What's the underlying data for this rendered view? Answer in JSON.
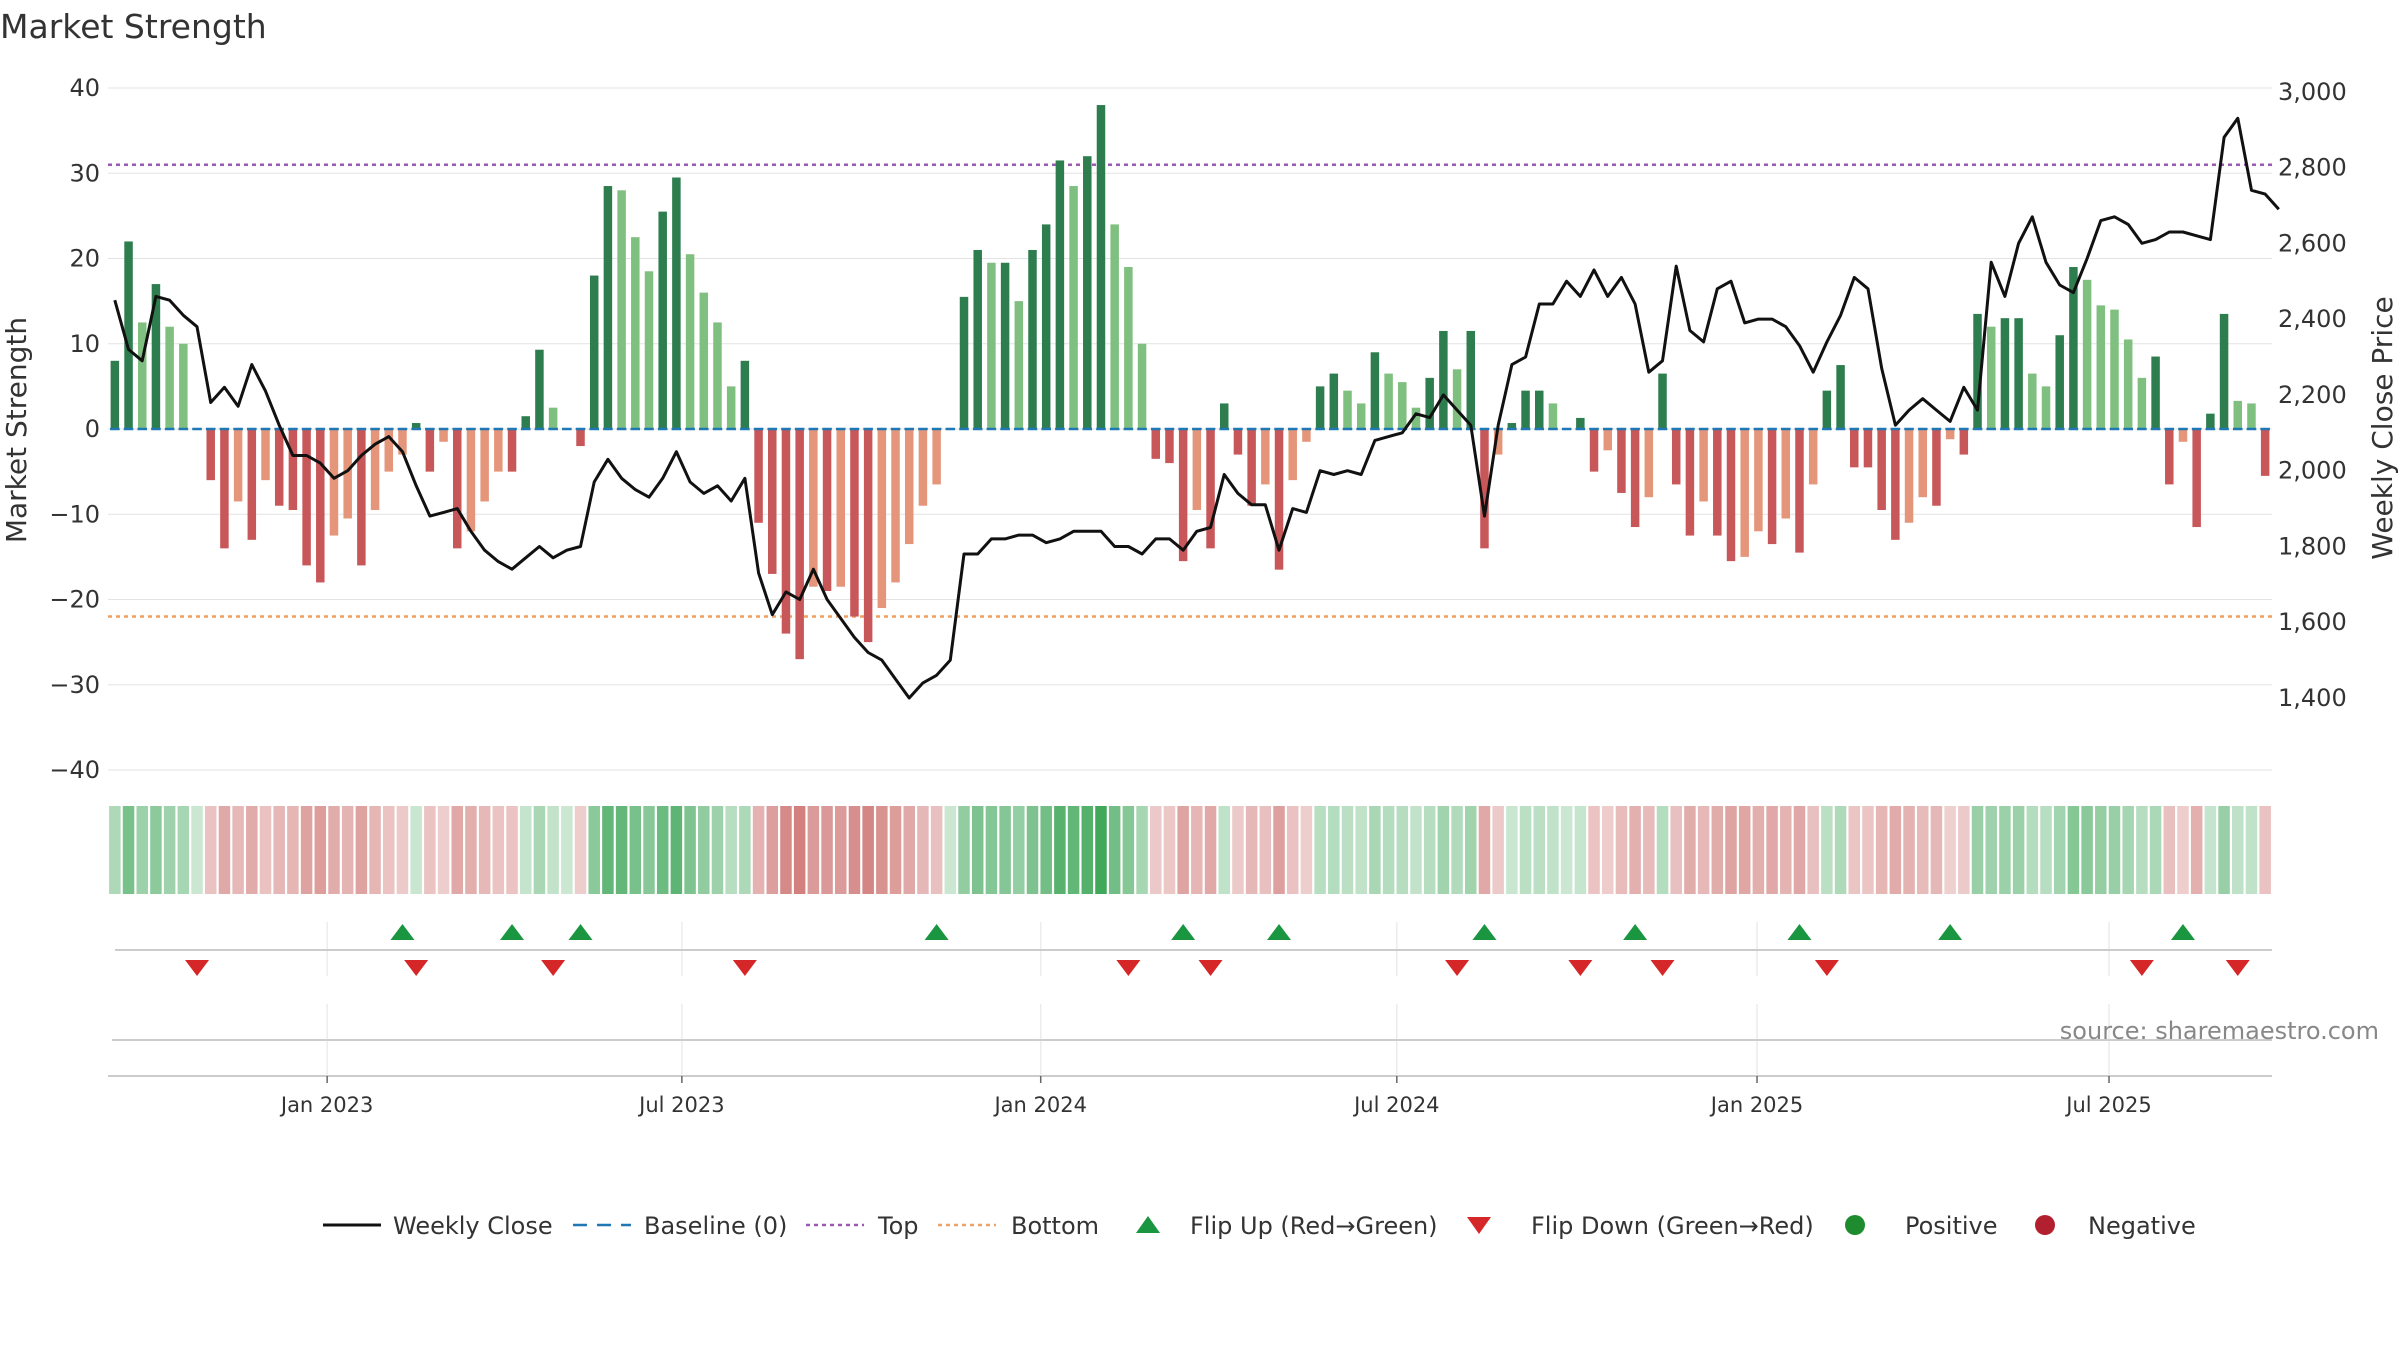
{
  "chart_data": {
    "type": "bar",
    "title": "Market Strength",
    "ylabel": "Market Strength",
    "y2label": "Weekly Close Price",
    "ylim": [
      -40,
      40
    ],
    "y2lim": [
      1210,
      3010
    ],
    "yticks": [
      40,
      30,
      20,
      10,
      0,
      -10,
      -20,
      -30,
      -40
    ],
    "yticklabels": [
      "40",
      "30",
      "20",
      "10",
      "0",
      "−10",
      "−20",
      "−30",
      "−40"
    ],
    "y2ticks": [
      3000,
      2800,
      2600,
      2400,
      2200,
      2000,
      1800,
      1600,
      1400
    ],
    "y2ticklabels": [
      "3,000",
      "2,800",
      "2,600",
      "2,400",
      "2,200",
      "2,000",
      "1,800",
      "1,600",
      "1,400"
    ],
    "top_level": 31,
    "bottom_level": -22,
    "x_start": "2022-09-19",
    "x_end": "2025-09-15",
    "xticks": [
      {
        "label": "Jan 2023",
        "week": 16.0
      },
      {
        "label": "Jul 2023",
        "week": 41.9
      },
      {
        "label": "Jan 2024",
        "week": 68.1
      },
      {
        "label": "Jul 2024",
        "week": 94.1
      },
      {
        "label": "Jan 2025",
        "week": 120.4
      },
      {
        "label": "Jul 2025",
        "week": 146.1
      }
    ],
    "strength": [
      8,
      22,
      12.5,
      17,
      12,
      10,
      0,
      -6,
      -14,
      -8.5,
      -13,
      -6,
      -9,
      -9.5,
      -16,
      -18,
      -12.5,
      -10.5,
      -16,
      -9.5,
      -5,
      -3,
      0.7,
      -5,
      -1.5,
      -14,
      -12,
      -8.5,
      -5,
      -5,
      1.5,
      9.3,
      2.5,
      0,
      -2,
      18,
      28.5,
      28,
      22.5,
      18.5,
      25.5,
      29.5,
      20.5,
      16,
      12.5,
      5,
      8,
      -11,
      -17,
      -24,
      -27,
      -18.5,
      -19,
      -18.5,
      -22,
      -25,
      -21,
      -18,
      -13.5,
      -9,
      -6.5,
      0,
      15.5,
      21,
      19.5,
      19.5,
      15,
      21,
      24,
      31.5,
      28.5,
      32,
      38,
      24,
      19,
      10,
      -3.5,
      -4,
      -15.5,
      -9.5,
      -14,
      3,
      -3,
      -9,
      -6.5,
      -16.5,
      -6,
      -1.5,
      5,
      6.5,
      4.5,
      3,
      9,
      6.5,
      5.5,
      2.5,
      6,
      11.5,
      7,
      11.5,
      -14,
      -3,
      0.7,
      4.5,
      4.5,
      3,
      0,
      1.3,
      -5,
      -2.5,
      -7.5,
      -11.5,
      -8,
      6.5,
      -6.5,
      -12.5,
      -8.5,
      -12.5,
      -15.5,
      -15,
      -12,
      -13.5,
      -10.5,
      -14.5,
      -6.5,
      4.5,
      7.5,
      -4.5,
      -4.5,
      -9.5,
      -13,
      -11,
      -8,
      -9,
      -1.2,
      -3,
      13.5,
      12,
      13,
      13,
      6.5,
      5,
      11,
      19,
      17.5,
      14.5,
      14,
      10.5,
      6,
      8.5,
      -6.5,
      -1.5,
      -11.5,
      1.8,
      13.5,
      3.3,
      3,
      -5.5
    ],
    "close": [
      2450,
      2320,
      2290,
      2460,
      2450,
      2410,
      2380,
      2180,
      2220,
      2170,
      2280,
      2210,
      2120,
      2040,
      2040,
      2020,
      1980,
      2000,
      2040,
      2070,
      2090,
      2050,
      1960,
      1880,
      1890,
      1900,
      1840,
      1790,
      1760,
      1740,
      1770,
      1800,
      1770,
      1790,
      1800,
      1970,
      2030,
      1980,
      1950,
      1930,
      1980,
      2050,
      1970,
      1940,
      1960,
      1920,
      1980,
      1730,
      1620,
      1680,
      1660,
      1740,
      1660,
      1610,
      1560,
      1520,
      1500,
      1450,
      1400,
      1440,
      1460,
      1500,
      1780,
      1780,
      1820,
      1820,
      1830,
      1830,
      1810,
      1820,
      1840,
      1840,
      1840,
      1800,
      1800,
      1780,
      1820,
      1820,
      1790,
      1840,
      1850,
      1990,
      1940,
      1910,
      1910,
      1790,
      1900,
      1890,
      2000,
      1990,
      2000,
      1990,
      2080,
      2090,
      2100,
      2150,
      2140,
      2200,
      2160,
      2120,
      1880,
      2120,
      2280,
      2300,
      2440,
      2440,
      2500,
      2460,
      2530,
      2460,
      2510,
      2440,
      2260,
      2290,
      2540,
      2370,
      2340,
      2480,
      2500,
      2390,
      2400,
      2400,
      2380,
      2330,
      2260,
      2340,
      2410,
      2510,
      2480,
      2270,
      2120,
      2160,
      2190,
      2160,
      2130,
      2220,
      2160,
      2550,
      2460,
      2600,
      2670,
      2550,
      2490,
      2470,
      2560,
      2660,
      2670,
      2650,
      2600,
      2610,
      2630,
      2630,
      2620,
      2610,
      2880,
      2930,
      2740,
      2730,
      2690
    ],
    "flip_up_weeks": [
      21,
      29,
      34,
      60,
      78,
      85,
      100,
      111,
      123,
      134,
      151
    ],
    "flip_down_weeks": [
      6,
      22,
      32,
      46,
      74,
      80,
      98,
      107,
      113,
      125,
      148,
      155
    ],
    "source": "source: sharemaestro.com",
    "legend": [
      {
        "key": "weekly_close",
        "label": "Weekly Close"
      },
      {
        "key": "baseline",
        "label": "Baseline (0)"
      },
      {
        "key": "top",
        "label": "Top"
      },
      {
        "key": "bottom",
        "label": "Bottom"
      },
      {
        "key": "flip_up",
        "label": "Flip Up (Red→Green)"
      },
      {
        "key": "flip_down",
        "label": "Flip Down (Green→Red)"
      },
      {
        "key": "positive",
        "label": "Positive"
      },
      {
        "key": "negative",
        "label": "Negative"
      }
    ],
    "colors": {
      "pos_dark": "#2e7d4f",
      "pos_light": "#7fbf7f",
      "neg_dark": "#c8575a",
      "neg_light": "#e5967a",
      "close_line": "#111111",
      "baseline": "#1f77b4",
      "top": "#9b59b6",
      "bottom": "#f0a060",
      "flip_up": "#1a9641",
      "flip_down": "#d62728",
      "positive_dot": "#1e8c2e",
      "negative_dot": "#b22030",
      "grid": "#e3e3e3",
      "heat_pos": "#2e9e4a",
      "heat_neg": "#c0504d"
    }
  }
}
